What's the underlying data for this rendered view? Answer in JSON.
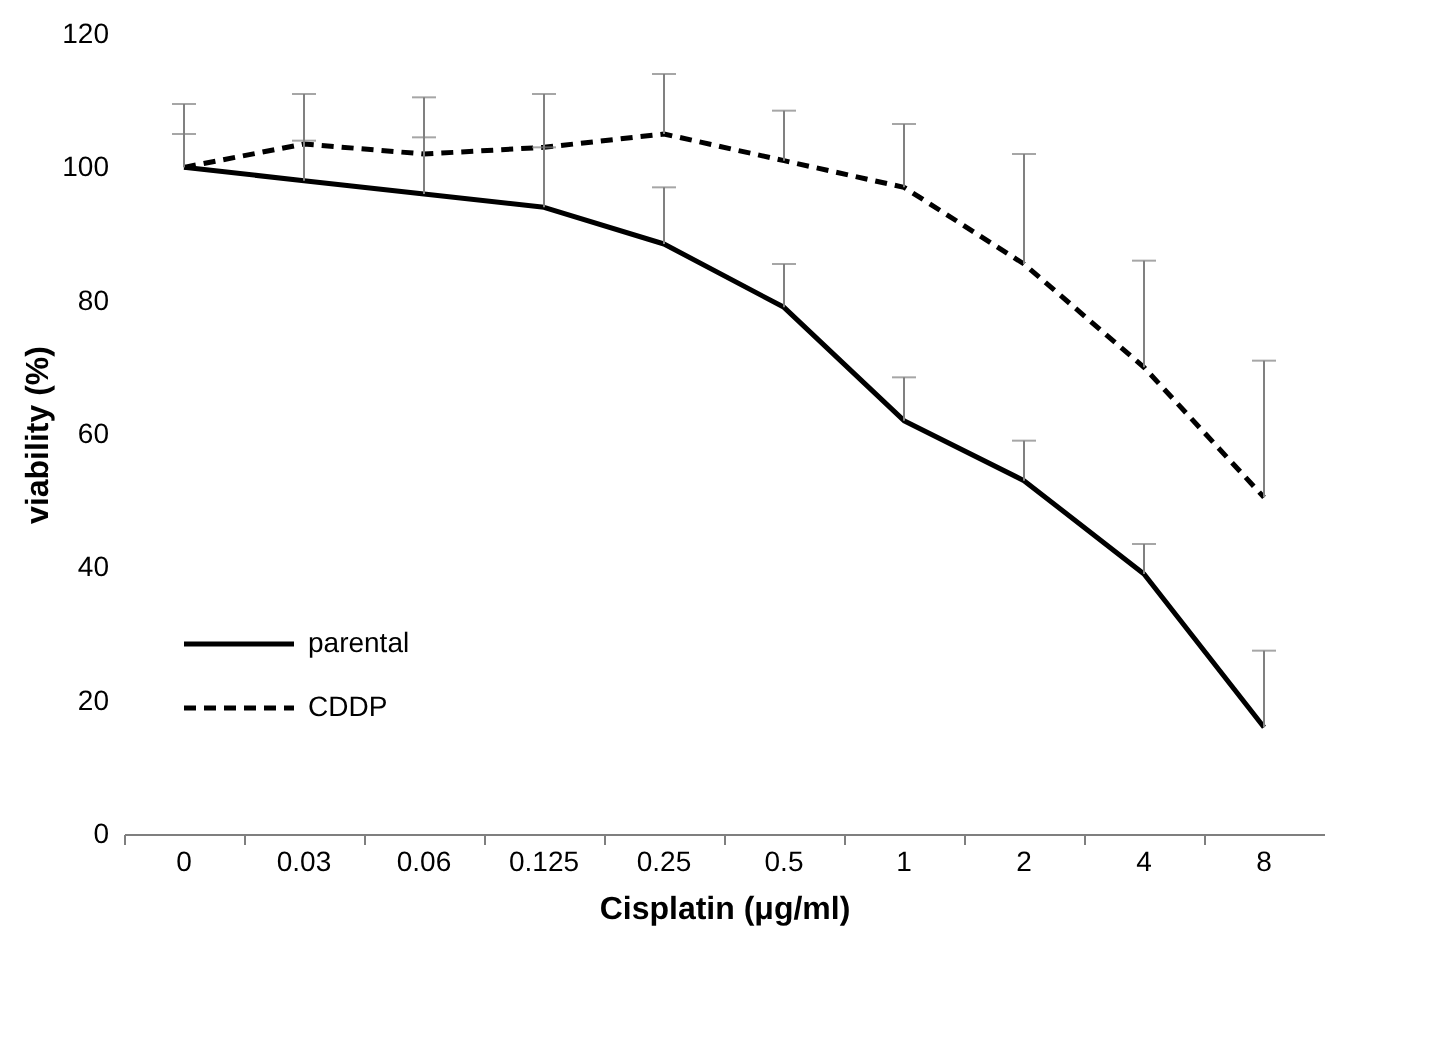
{
  "chart_data": {
    "type": "line",
    "xlabel": "Cisplatin (μg/ml)",
    "ylabel": "viability (%)",
    "categories": [
      "0",
      "0.03",
      "0.06",
      "0.125",
      "0.25",
      "0.5",
      "1",
      "2",
      "4",
      "8"
    ],
    "ylim": [
      0,
      120
    ],
    "yticks": [
      0,
      20,
      40,
      60,
      80,
      100,
      120
    ],
    "grid": false,
    "legend": "bottom left",
    "marker": "none",
    "series": [
      {
        "name": "parental",
        "color": "#000000",
        "line_style": "solid",
        "values": [
          100,
          98,
          96,
          94,
          88.5,
          79,
          62,
          53,
          39,
          16
        ],
        "errors": [
          [
            100,
            105
          ],
          [
            98,
            104
          ],
          [
            96,
            104.5
          ],
          [
            94,
            103
          ],
          [
            88.5,
            97
          ],
          [
            79,
            85.5
          ],
          [
            62,
            68.5
          ],
          [
            53,
            59
          ],
          [
            39,
            43.5
          ],
          [
            16,
            27.5
          ]
        ]
      },
      {
        "name": "CDDP",
        "color": "#000000",
        "line_style": "dashed",
        "values": [
          100,
          103.5,
          102,
          103,
          105,
          101,
          97,
          85.5,
          70,
          50.5
        ],
        "errors": [
          [
            100,
            109.5
          ],
          [
            103.5,
            111
          ],
          [
            102,
            110.5
          ],
          [
            103,
            111
          ],
          [
            105,
            114
          ],
          [
            101,
            108.5
          ],
          [
            97,
            106.5
          ],
          [
            85.5,
            102
          ],
          [
            70,
            86
          ],
          [
            50.5,
            71
          ]
        ]
      }
    ]
  }
}
